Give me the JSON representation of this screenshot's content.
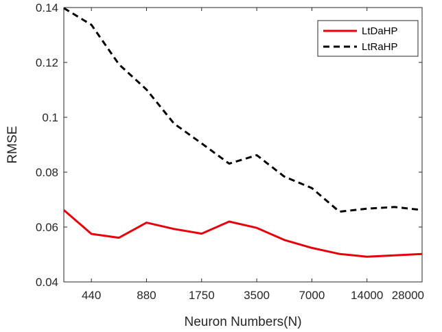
{
  "chart_data": {
    "type": "line",
    "xlabel": "Neuron Numbers(N)",
    "ylabel": "RMSE",
    "x_tick_labels": [
      "440",
      "880",
      "1750",
      "3500",
      "7000",
      "14000",
      "28000"
    ],
    "x_tick_positions": [
      1,
      3,
      5,
      7,
      9,
      11,
      13
    ],
    "y_ticks": [
      0.04,
      0.06,
      0.08,
      0.1,
      0.12,
      0.14
    ],
    "y_tick_labels": [
      "0.04",
      "0.06",
      "0.08",
      "0.1",
      "0.12",
      "0.14"
    ],
    "xlim": [
      0,
      13
    ],
    "ylim": [
      0.04,
      0.14
    ],
    "x": [
      0,
      1,
      2,
      3,
      4,
      5,
      6,
      7,
      8,
      9,
      10,
      11,
      12,
      13
    ],
    "series": [
      {
        "name": "LtDaHP",
        "color": "#e8000b",
        "style": "solid",
        "values": [
          0.0662,
          0.0575,
          0.0561,
          0.0616,
          0.0593,
          0.0576,
          0.062,
          0.0597,
          0.0553,
          0.0524,
          0.0502,
          0.0492,
          0.0497,
          0.0502
        ]
      },
      {
        "name": "LtRaHP",
        "color": "#000000",
        "style": "dashed",
        "values": [
          0.1398,
          0.1337,
          0.1193,
          0.1101,
          0.0977,
          0.0905,
          0.0831,
          0.0862,
          0.0784,
          0.0742,
          0.0656,
          0.0667,
          0.0673,
          0.0662
        ]
      }
    ],
    "legend_position": "top-right",
    "grid": false
  }
}
